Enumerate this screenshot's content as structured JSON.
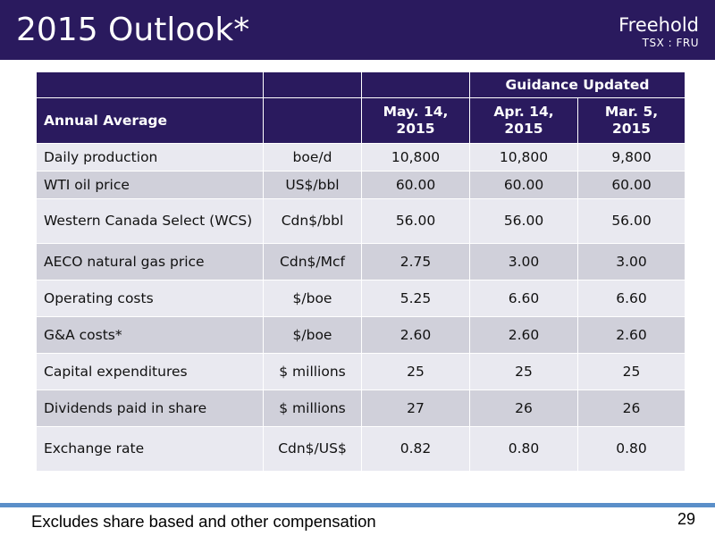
{
  "header": {
    "title": "2015 Outlook*",
    "brand_name": "Freehold",
    "brand_ticker": "TSX : FRU"
  },
  "table": {
    "group_header": "Guidance Updated",
    "columns": [
      "Annual Average",
      "",
      "May. 14, 2015",
      "Apr. 14, 2015",
      "Mar. 5, 2015"
    ],
    "rows": [
      {
        "label": "Daily production",
        "unit": "boe/d",
        "v1": "10,800",
        "v2": "10,800",
        "v3": "9,800"
      },
      {
        "label": "WTI oil price",
        "unit": "US$/bbl",
        "v1": "60.00",
        "v2": "60.00",
        "v3": "60.00"
      },
      {
        "label": "Western Canada Select (WCS)",
        "unit": "Cdn$/bbl",
        "v1": "56.00",
        "v2": "56.00",
        "v3": "56.00"
      },
      {
        "label": "AECO natural gas price",
        "unit": "Cdn$/Mcf",
        "v1": "2.75",
        "v2": "3.00",
        "v3": "3.00"
      },
      {
        "label": "Operating costs",
        "unit": "$/boe",
        "v1": "5.25",
        "v2": "6.60",
        "v3": "6.60"
      },
      {
        "label": "G&A costs*",
        "unit": "$/boe",
        "v1": "2.60",
        "v2": "2.60",
        "v3": "2.60"
      },
      {
        "label": "Capital expenditures",
        "unit": "$ millions",
        "v1": "25",
        "v2": "25",
        "v3": "25"
      },
      {
        "label": "Dividends paid in share",
        "unit": "$ millions",
        "v1": "27",
        "v2": "26",
        "v3": "26"
      },
      {
        "label": "Exchange rate",
        "unit": "Cdn$/US$",
        "v1": "0.82",
        "v2": "0.80",
        "v3": "0.80"
      }
    ]
  },
  "footer": {
    "note": "Excludes share based and other compensation",
    "page_number": "29"
  },
  "colors": {
    "header_bg": "#2a1a5e",
    "row_light": "#e9e9f0",
    "row_dark": "#d0d0da",
    "rule": "#5b8fc9"
  }
}
